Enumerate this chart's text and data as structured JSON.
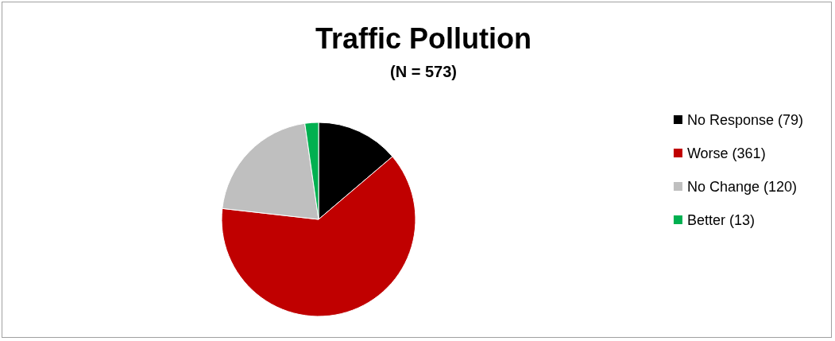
{
  "chart_data": {
    "type": "pie",
    "title": "Traffic Pollution",
    "subtitle": "(N = 573)",
    "categories": [
      "No Response (79)",
      "Worse (361)",
      "No Change (120)",
      "Better (13)"
    ],
    "values": [
      79,
      361,
      120,
      13
    ],
    "colors": [
      "#000000",
      "#c00000",
      "#bfbfbf",
      "#00b050"
    ],
    "legend": "right"
  }
}
